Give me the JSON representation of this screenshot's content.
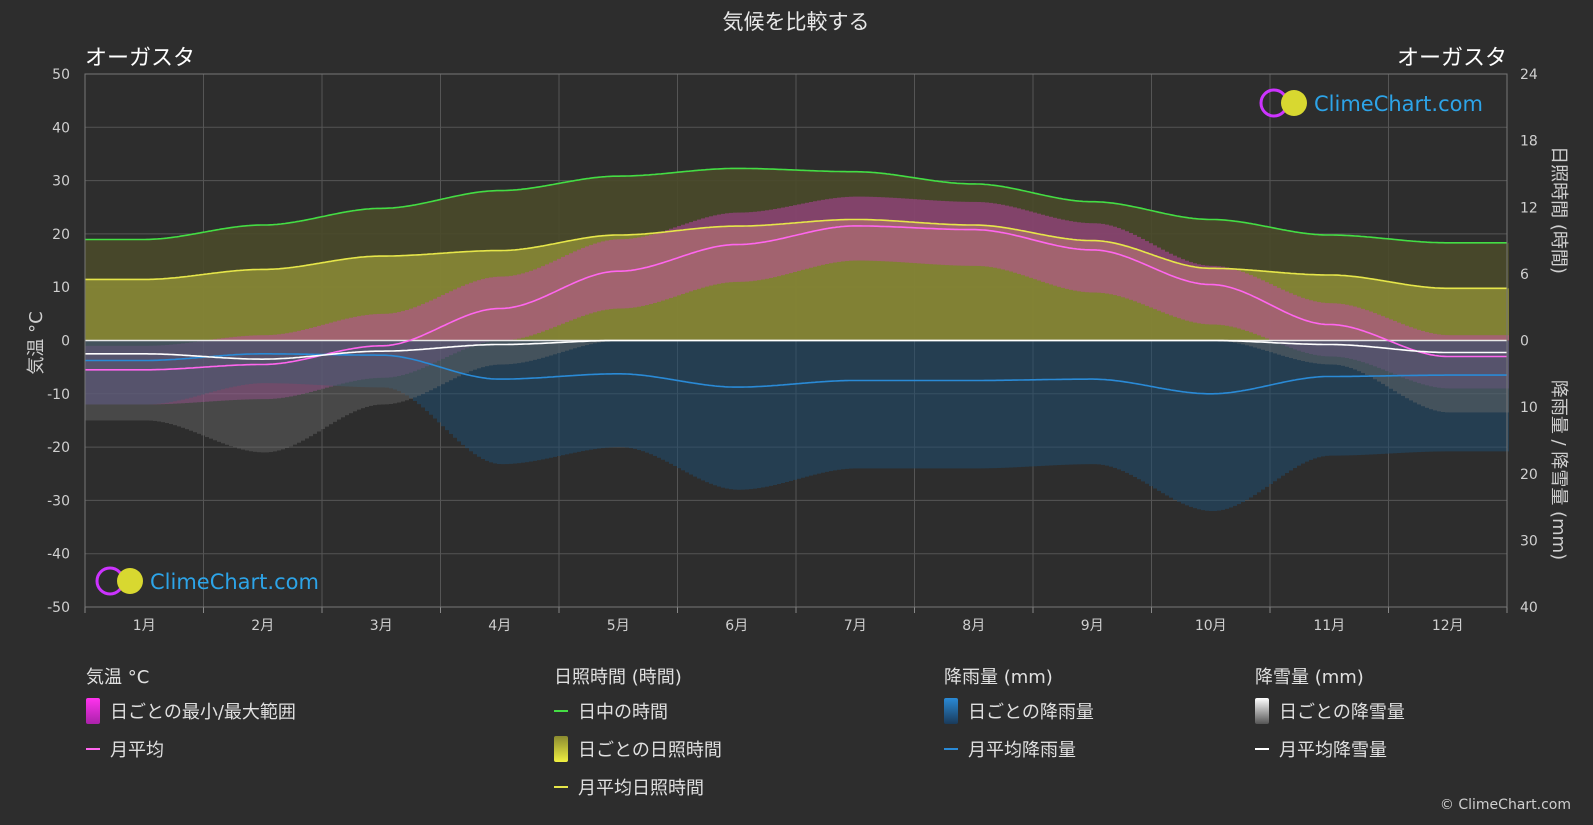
{
  "title": "気候を比較する",
  "location_left": "オーガスタ",
  "location_right": "オーガスタ",
  "left_axis_label": "気温 °C",
  "right_axis_top_label": "日照時間 (時間)",
  "right_axis_bottom_label": "降雨量 / 降雪量 (mm)",
  "logo_text": "ClimeChart.com",
  "copyright": "© ClimeChart.com",
  "colors": {
    "background": "#2d2d2d",
    "daylight": "#44dd44",
    "sunshine": "#e6e64a",
    "temp_avg": "#ff66ee",
    "temp_range": "#dd33cc",
    "rain": "#2a8ad6",
    "snow": "#ffffff"
  },
  "legend": {
    "temp": {
      "title": "気温 °C",
      "items": [
        "日ごとの最小/最大範囲",
        "月平均"
      ]
    },
    "sun": {
      "title": "日照時間 (時間)",
      "items": [
        "日中の時間",
        "日ごとの日照時間",
        "月平均日照時間"
      ]
    },
    "rain": {
      "title": "降雨量 (mm)",
      "items": [
        "日ごとの降雨量",
        "月平均降雨量"
      ]
    },
    "snow": {
      "title": "降雪量 (mm)",
      "items": [
        "日ごとの降雪量",
        "月平均降雪量"
      ]
    }
  },
  "chart_data": {
    "type": "line",
    "x_label_suffix": "月",
    "categories": [
      "1月",
      "2月",
      "3月",
      "4月",
      "5月",
      "6月",
      "7月",
      "8月",
      "9月",
      "10月",
      "11月",
      "12月"
    ],
    "y_left": {
      "label": "気温 °C",
      "ylim": [
        -50,
        50
      ],
      "ticks": [
        50,
        40,
        30,
        20,
        10,
        0,
        -10,
        -20,
        -30,
        -40,
        -50
      ]
    },
    "y_right_top": {
      "label": "日照時間 (時間)",
      "ylim": [
        0,
        24
      ],
      "ticks": [
        24,
        18,
        12,
        6,
        0
      ]
    },
    "y_right_bottom": {
      "label": "降雨量 / 降雪量 (mm)",
      "ylim": [
        0,
        40
      ],
      "ticks": [
        0,
        10,
        20,
        30,
        40
      ]
    },
    "series": [
      {
        "name": "日中の時間",
        "axis": "hours",
        "values": [
          9.1,
          10.4,
          11.9,
          13.5,
          14.8,
          15.5,
          15.2,
          14.1,
          12.5,
          10.9,
          9.5,
          8.8
        ]
      },
      {
        "name": "月平均日照時間",
        "axis": "hours",
        "values": [
          5.5,
          6.4,
          7.6,
          8.1,
          9.5,
          10.3,
          10.9,
          10.4,
          9.0,
          6.5,
          5.9,
          4.7
        ]
      },
      {
        "name": "日ごとの日照時間",
        "axis": "hours",
        "values": [
          5.5,
          6.4,
          7.6,
          8.1,
          9.5,
          10.3,
          10.9,
          10.4,
          9.0,
          6.5,
          5.9,
          4.7
        ]
      },
      {
        "name": "月平均",
        "axis": "temp",
        "values": [
          -5.5,
          -4.5,
          -1.0,
          6.0,
          13.0,
          18.0,
          21.5,
          20.8,
          17.0,
          10.5,
          3.0,
          -3.0
        ]
      },
      {
        "name": "日ごとの最小/最大範囲",
        "axis": "temp",
        "min": [
          -12,
          -11,
          -7,
          0,
          6,
          11,
          15,
          14,
          9,
          3,
          -3,
          -9
        ],
        "max": [
          -1,
          1,
          5,
          12,
          19,
          24,
          27,
          26,
          22,
          14,
          7,
          1
        ]
      },
      {
        "name": "月平均降雨量",
        "axis": "precip",
        "values": [
          3.0,
          2.0,
          2.2,
          5.8,
          5.0,
          7.0,
          6.0,
          6.0,
          5.8,
          8.0,
          5.4,
          5.2
        ]
      },
      {
        "name": "月平均降雪量",
        "axis": "precip",
        "values": [
          2.0,
          2.8,
          1.6,
          0.6,
          0.0,
          0.0,
          0.0,
          0.0,
          0.0,
          0.0,
          0.6,
          1.8
        ]
      }
    ]
  }
}
